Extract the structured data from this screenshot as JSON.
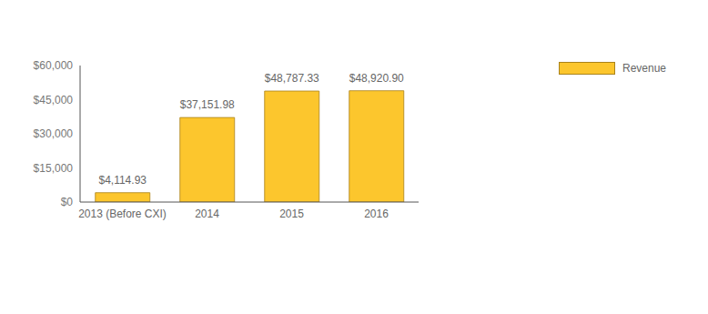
{
  "chart_data": {
    "type": "bar",
    "categories": [
      "2013 (Before CXI)",
      "2014",
      "2015",
      "2016"
    ],
    "series": [
      {
        "name": "Revenue",
        "color": "#fcc62d",
        "values": [
          4114.93,
          37151.98,
          48787.33,
          48920.9
        ],
        "value_labels": [
          "$4,114.93",
          "$37,151.98",
          "$48,787.33",
          "$48,920.90"
        ]
      }
    ],
    "ylim": [
      0,
      60000
    ],
    "yticks": [
      {
        "value": 0,
        "label": "$0"
      },
      {
        "value": 15000,
        "label": "$15,000"
      },
      {
        "value": 30000,
        "label": "$30,000"
      },
      {
        "value": 45000,
        "label": "$45,000"
      },
      {
        "value": 60000,
        "label": "$60,000"
      }
    ],
    "data_labels": true,
    "grid": false,
    "legend": "top right"
  }
}
